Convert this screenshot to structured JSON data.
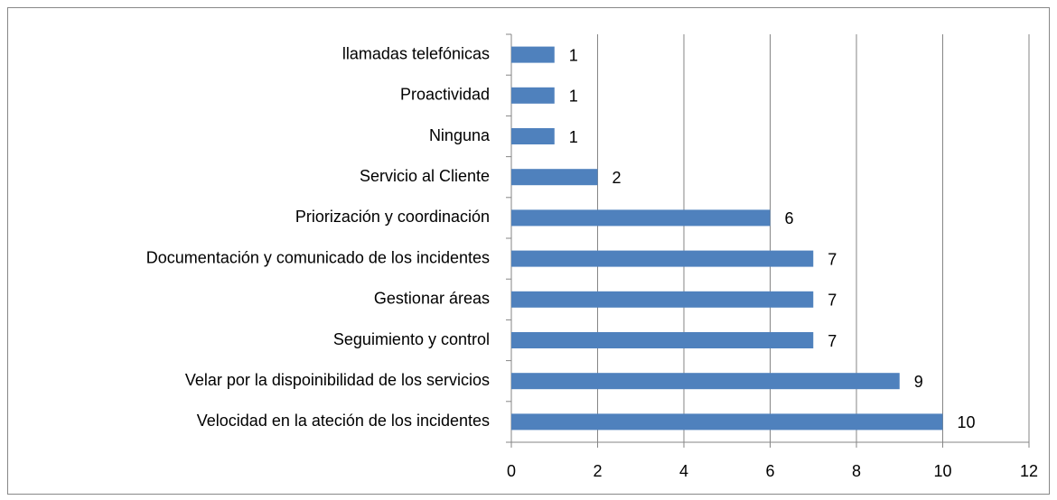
{
  "chart_data": {
    "type": "bar",
    "orientation": "horizontal",
    "categories": [
      "Velocidad en la ateción de los incidentes",
      "Velar por la dispoinibilidad de los servicios",
      "Seguimiento y control",
      "Gestionar áreas",
      "Documentación y comunicado de los incidentes",
      "Priorización y coordinación",
      "Servicio al Cliente",
      "Ninguna",
      "Proactividad",
      "llamadas telefónicas"
    ],
    "values": [
      10,
      9,
      7,
      7,
      7,
      6,
      2,
      1,
      1,
      1
    ],
    "color": "#4f81bd",
    "xlim": [
      0,
      12
    ],
    "xticks": [
      0,
      2,
      4,
      6,
      8,
      10,
      12
    ],
    "grid": true
  }
}
